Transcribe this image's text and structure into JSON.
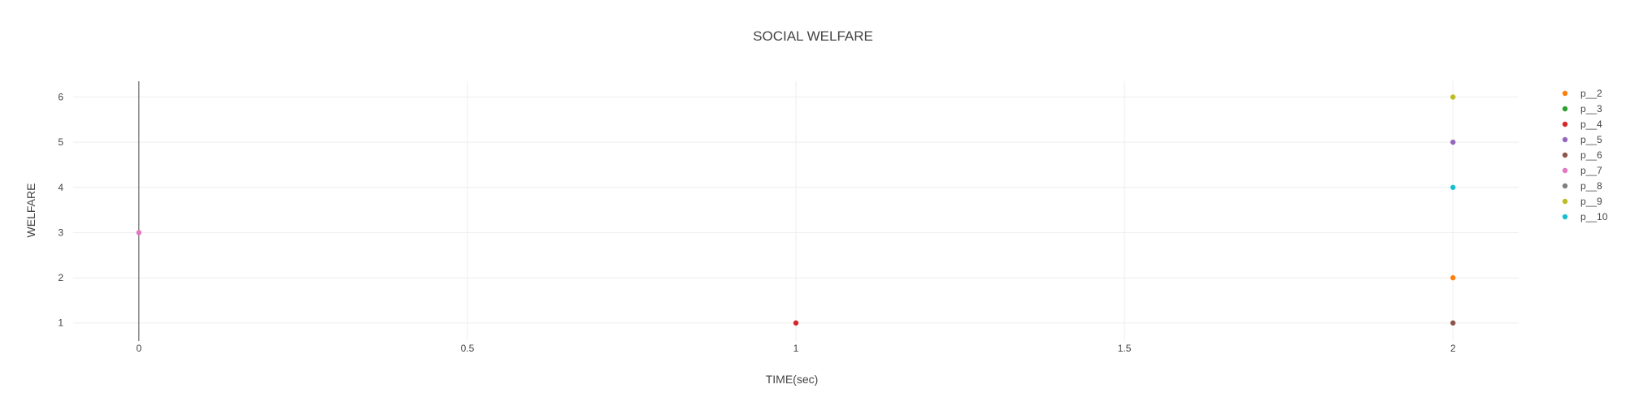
{
  "chart_data": {
    "type": "scatter",
    "title": "SOCIAL WELFARE",
    "xlabel": "TIME(sec)",
    "ylabel": "WELFARE",
    "xlim": [
      -0.1,
      2.1
    ],
    "ylim": [
      0.6,
      6.35
    ],
    "xticks": [
      0,
      0.5,
      1,
      1.5,
      2
    ],
    "xtick_labels": [
      "0",
      "0.5",
      "1",
      "1.5",
      "2"
    ],
    "yticks": [
      1,
      2,
      3,
      4,
      5,
      6
    ],
    "ytick_labels": [
      "1",
      "2",
      "3",
      "4",
      "5",
      "6"
    ],
    "grid": true,
    "legend_position": "top-right",
    "series": [
      {
        "name": "p__2",
        "color": "#ff7f0e",
        "x": [
          2
        ],
        "y": [
          2
        ]
      },
      {
        "name": "p__3",
        "color": "#2ca02c",
        "x": [],
        "y": []
      },
      {
        "name": "p__4",
        "color": "#d62728",
        "x": [
          1
        ],
        "y": [
          1
        ]
      },
      {
        "name": "p__5",
        "color": "#9467bd",
        "x": [
          2
        ],
        "y": [
          5
        ]
      },
      {
        "name": "p__6",
        "color": "#8c564b",
        "x": [
          2
        ],
        "y": [
          1
        ]
      },
      {
        "name": "p__7",
        "color": "#e377c2",
        "x": [
          0
        ],
        "y": [
          3
        ]
      },
      {
        "name": "p__8",
        "color": "#7f7f7f",
        "x": [],
        "y": []
      },
      {
        "name": "p__9",
        "color": "#bcbd22",
        "x": [
          2
        ],
        "y": [
          6
        ]
      },
      {
        "name": "p__10",
        "color": "#17becf",
        "x": [
          2
        ],
        "y": [
          4
        ]
      }
    ]
  }
}
